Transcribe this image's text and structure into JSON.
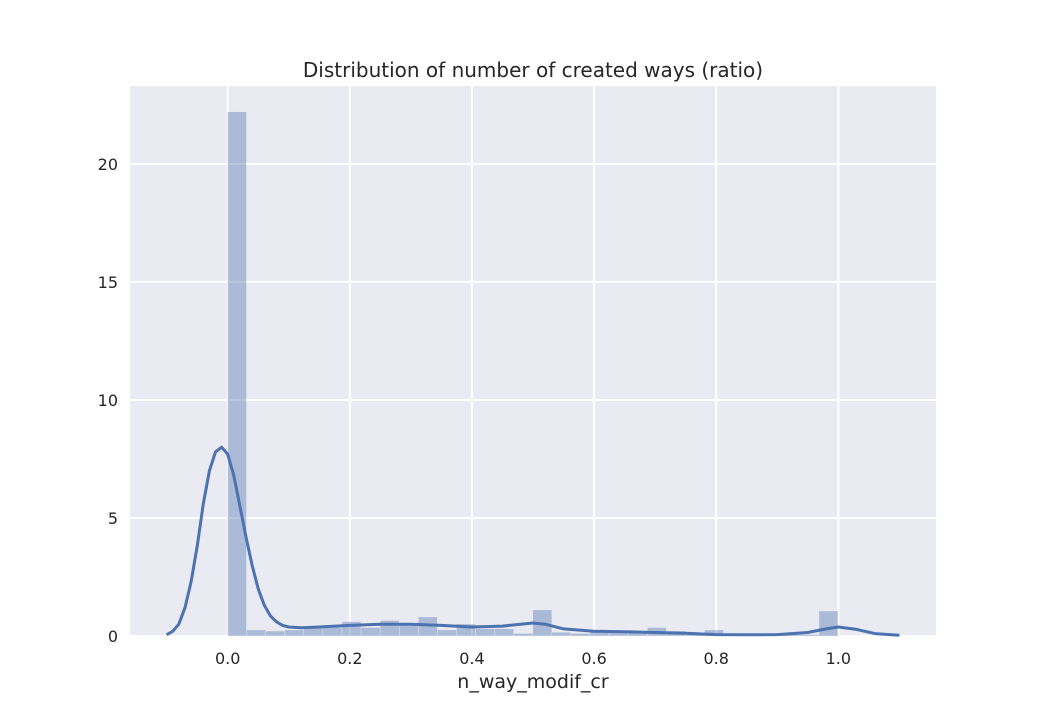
{
  "chart_data": {
    "type": "bar",
    "title": "Distribution of number of created ways (ratio)",
    "xlabel": "n_way_modif_cr",
    "ylabel": "",
    "xlim": [
      -0.16,
      1.16
    ],
    "ylim": [
      0,
      23.3
    ],
    "xticks": [
      0.0,
      0.2,
      0.4,
      0.6,
      0.8,
      1.0
    ],
    "xtick_labels": [
      "0.0",
      "0.2",
      "0.4",
      "0.6",
      "0.8",
      "1.0"
    ],
    "yticks": [
      0,
      5,
      10,
      15,
      20
    ],
    "ytick_labels": [
      "0",
      "5",
      "10",
      "15",
      "20"
    ],
    "grid": true,
    "colors": {
      "background": "#eaeaf2",
      "bars": "#4c72b0",
      "bar_opacity": 0.4,
      "kde_line": "#4c72b0",
      "grid": "#ffffff"
    },
    "histogram": {
      "bin_width": 0.03125,
      "bin_start": 0,
      "values": [
        22.2,
        0.25,
        0.2,
        0.25,
        0.35,
        0.35,
        0.6,
        0.35,
        0.65,
        0.5,
        0.8,
        0.25,
        0.5,
        0.3,
        0.3,
        0.1,
        1.1,
        0.15,
        0.1,
        0.15,
        0.15,
        0.15,
        0.35,
        0.2,
        0.1,
        0.25,
        0.05,
        0.05,
        0.05,
        0.05,
        0.05,
        1.05
      ]
    },
    "kde": {
      "x": [
        -0.1,
        -0.09,
        -0.08,
        -0.07,
        -0.06,
        -0.05,
        -0.04,
        -0.03,
        -0.02,
        -0.01,
        0.0,
        0.01,
        0.02,
        0.03,
        0.04,
        0.05,
        0.06,
        0.07,
        0.08,
        0.09,
        0.1,
        0.12,
        0.15,
        0.2,
        0.25,
        0.3,
        0.35,
        0.4,
        0.45,
        0.5,
        0.52,
        0.55,
        0.6,
        0.65,
        0.7,
        0.75,
        0.8,
        0.85,
        0.9,
        0.95,
        0.98,
        1.0,
        1.03,
        1.06,
        1.1
      ],
      "y": [
        0.05,
        0.2,
        0.5,
        1.2,
        2.3,
        3.8,
        5.6,
        7.0,
        7.8,
        8.0,
        7.7,
        6.8,
        5.5,
        4.2,
        3.0,
        2.0,
        1.3,
        0.85,
        0.6,
        0.45,
        0.38,
        0.35,
        0.38,
        0.45,
        0.5,
        0.5,
        0.45,
        0.38,
        0.42,
        0.55,
        0.5,
        0.3,
        0.2,
        0.18,
        0.15,
        0.12,
        0.06,
        0.05,
        0.06,
        0.15,
        0.3,
        0.38,
        0.28,
        0.1,
        0.03
      ]
    }
  }
}
